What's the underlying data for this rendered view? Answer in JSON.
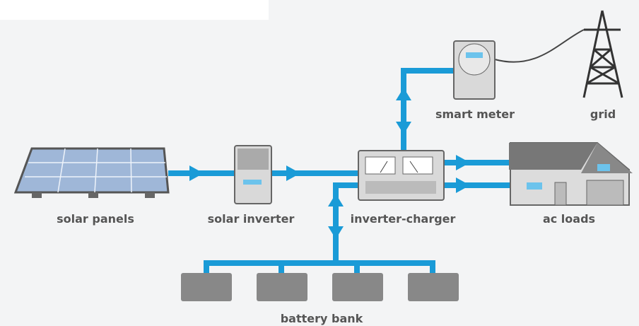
{
  "nodes": [
    {
      "label": "solar panels"
    },
    {
      "label": "solar inverter"
    },
    {
      "label": "inverter-charger"
    },
    {
      "label": "ac loads"
    },
    {
      "label": "smart meter"
    },
    {
      "label": "grid"
    },
    {
      "label": "battery bank"
    }
  ]
}
